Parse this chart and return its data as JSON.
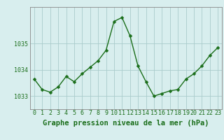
{
  "x": [
    0,
    1,
    2,
    3,
    4,
    5,
    6,
    7,
    8,
    9,
    10,
    11,
    12,
    13,
    14,
    15,
    16,
    17,
    18,
    19,
    20,
    21,
    22,
    23
  ],
  "y": [
    1033.65,
    1033.25,
    1033.15,
    1033.35,
    1033.75,
    1033.55,
    1033.85,
    1034.1,
    1034.35,
    1034.75,
    1035.85,
    1036.0,
    1035.3,
    1034.15,
    1033.55,
    1033.0,
    1033.1,
    1033.2,
    1033.25,
    1033.65,
    1033.85,
    1034.15,
    1034.55,
    1034.85
  ],
  "line_color": "#1a6e1a",
  "marker_color": "#1a6e1a",
  "bg_color": "#d8eeee",
  "grid_color": "#aacccc",
  "title": "Graphe pression niveau de la mer (hPa)",
  "ylim": [
    1032.5,
    1036.4
  ],
  "xlim": [
    -0.5,
    23.5
  ],
  "yticks": [
    1033,
    1034,
    1035
  ],
  "xtick_labels": [
    "0",
    "1",
    "2",
    "3",
    "4",
    "5",
    "6",
    "7",
    "8",
    "9",
    "10",
    "11",
    "12",
    "13",
    "14",
    "15",
    "16",
    "17",
    "18",
    "19",
    "20",
    "21",
    "22",
    "23"
  ],
  "title_fontsize": 7.5,
  "tick_fontsize": 6,
  "marker_size": 2.5,
  "line_width": 1.0
}
